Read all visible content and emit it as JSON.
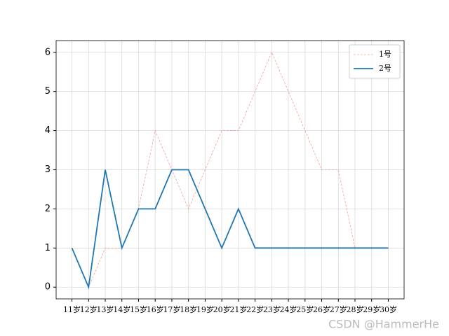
{
  "chart_data": {
    "type": "line",
    "categories": [
      "11岁",
      "12岁",
      "13岁",
      "14岁",
      "15岁",
      "16岁",
      "17岁",
      "18岁",
      "19岁",
      "20岁",
      "21岁",
      "22岁",
      "23岁",
      "24岁",
      "25岁",
      "26岁",
      "27岁",
      "28岁",
      "29岁",
      "30岁"
    ],
    "series": [
      {
        "name": "1号",
        "color": "#f08070",
        "linestyle": "dashed",
        "values": [
          1,
          0,
          1,
          1,
          2,
          4,
          3,
          2,
          3,
          4,
          4,
          5,
          6,
          5,
          4,
          3,
          3,
          1,
          1,
          1
        ]
      },
      {
        "name": "2号",
        "color": "#1f77b4",
        "linestyle": "solid",
        "values": [
          1,
          0,
          3,
          1,
          2,
          2,
          3,
          3,
          2,
          1,
          2,
          1,
          1,
          1,
          1,
          1,
          1,
          1,
          1,
          1
        ]
      }
    ],
    "ylim": [
      -0.3,
      6.3
    ],
    "yticks": [
      0,
      1,
      2,
      3,
      4,
      5,
      6
    ],
    "grid": true,
    "legend": "upper right",
    "watermark": "CSDN @HammerHe"
  }
}
